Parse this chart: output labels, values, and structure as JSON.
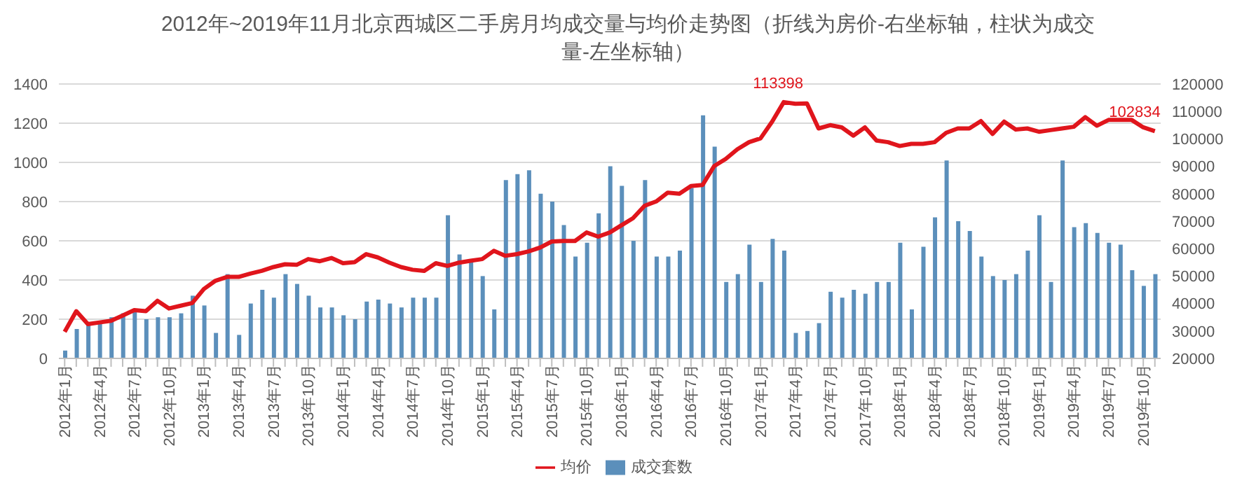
{
  "chart_data": {
    "type": "bar",
    "title": "2012年~2019年11月北京西城区二手房月均成交量与均价走势图（折线为房价-右坐标轴，柱状为成交量-左坐标轴）",
    "categories": [
      "2012年1月",
      null,
      null,
      "2012年4月",
      null,
      null,
      "2012年7月",
      null,
      null,
      "2012年10月",
      null,
      null,
      "2013年1月",
      null,
      null,
      "2013年4月",
      null,
      null,
      "2013年7月",
      null,
      null,
      "2013年10月",
      null,
      null,
      "2014年1月",
      null,
      null,
      "2014年4月",
      null,
      null,
      "2014年7月",
      null,
      null,
      "2014年10月",
      null,
      null,
      "2015年1月",
      null,
      null,
      "2015年4月",
      null,
      null,
      "2015年7月",
      null,
      null,
      "2015年10月",
      null,
      null,
      "2016年1月",
      null,
      null,
      "2016年4月",
      null,
      null,
      "2016年7月",
      null,
      null,
      "2016年10月",
      null,
      null,
      "2017年1月",
      null,
      null,
      "2017年4月",
      null,
      null,
      "2017年7月",
      null,
      null,
      "2017年10月",
      null,
      null,
      "2018年1月",
      null,
      null,
      "2018年4月",
      null,
      null,
      "2018年7月",
      null,
      null,
      "2018年10月",
      null,
      null,
      "2019年1月",
      null,
      null,
      "2019年4月",
      null,
      null,
      "2019年7月",
      null,
      null,
      "2019年10月",
      null
    ],
    "series": [
      {
        "name": "成交套数",
        "color": "#5b8fbb",
        "values": [
          40,
          150,
          180,
          180,
          210,
          230,
          240,
          200,
          210,
          210,
          230,
          320,
          270,
          130,
          430,
          120,
          280,
          350,
          310,
          430,
          380,
          320,
          260,
          260,
          220,
          200,
          290,
          300,
          280,
          260,
          310,
          310,
          310,
          730,
          530,
          490,
          420,
          250,
          910,
          940,
          960,
          840,
          800,
          680,
          520,
          590,
          740,
          980,
          880,
          600,
          910,
          520,
          520,
          550,
          870,
          1240,
          1080,
          390,
          430,
          580,
          390,
          610,
          550,
          130,
          140,
          180,
          340,
          310,
          350,
          330,
          390,
          390,
          590,
          250,
          570,
          720,
          1010,
          700,
          650,
          520,
          420,
          400,
          430,
          550,
          730,
          390,
          1010,
          670,
          690,
          640,
          590,
          580,
          450,
          370,
          430
        ]
      },
      {
        "name": "均价",
        "type": "line",
        "axis": "y2",
        "color": "#e0151c",
        "values": [
          29700,
          37200,
          32500,
          33100,
          33700,
          35600,
          37600,
          37200,
          41000,
          38200,
          39200,
          40200,
          45300,
          48300,
          49700,
          49700,
          50900,
          51900,
          53300,
          54300,
          54100,
          56200,
          55400,
          56600,
          54700,
          55100,
          58000,
          56800,
          54900,
          53300,
          52300,
          51900,
          54700,
          53700,
          54900,
          55600,
          56200,
          59200,
          57400,
          58000,
          59000,
          60400,
          62600,
          62800,
          62800,
          65900,
          64400,
          65900,
          68500,
          71100,
          75600,
          77200,
          80400,
          80000,
          82800,
          83200,
          90100,
          92700,
          96200,
          98800,
          100200,
          106300,
          113398,
          112800,
          112900,
          103800,
          105000,
          104200,
          101200,
          104200,
          99400,
          98800,
          97400,
          98200,
          98200,
          98800,
          102200,
          103800,
          103800,
          106500,
          101800,
          106300,
          103400,
          103800,
          102600,
          103200,
          103800,
          104400,
          107900,
          104800,
          106900,
          106900,
          106900,
          104200,
          102834
        ],
        "value_labels": [
          null,
          null,
          null,
          null,
          null,
          null,
          null,
          null,
          null,
          null,
          null,
          null,
          null,
          null,
          null,
          null,
          null,
          null,
          null,
          null,
          null,
          null,
          null,
          null,
          null,
          null,
          null,
          null,
          null,
          null,
          null,
          null,
          null,
          null,
          null,
          null,
          null,
          null,
          null,
          null,
          null,
          null,
          null,
          null,
          null,
          null,
          null,
          null,
          null,
          null,
          null,
          null,
          null,
          null,
          null,
          null,
          null,
          null,
          null,
          null,
          null,
          null,
          "113398",
          null,
          null,
          null,
          null,
          null,
          null,
          null,
          null,
          null,
          null,
          null,
          null,
          null,
          null,
          null,
          null,
          null,
          null,
          null,
          null,
          null,
          null,
          null,
          null,
          null,
          null,
          null,
          null,
          null,
          null,
          null,
          "102834"
        ]
      }
    ],
    "ylim": [
      0,
      1400
    ],
    "yticks": [
      0,
      200,
      400,
      600,
      800,
      1000,
      1200,
      1400
    ],
    "y2lim": [
      20000,
      120000
    ],
    "y2ticks": [
      20000,
      30000,
      40000,
      50000,
      60000,
      70000,
      80000,
      90000,
      100000,
      110000,
      120000
    ],
    "grid": "y",
    "legend": "bottom",
    "marker": "none",
    "line_style": "solid"
  }
}
